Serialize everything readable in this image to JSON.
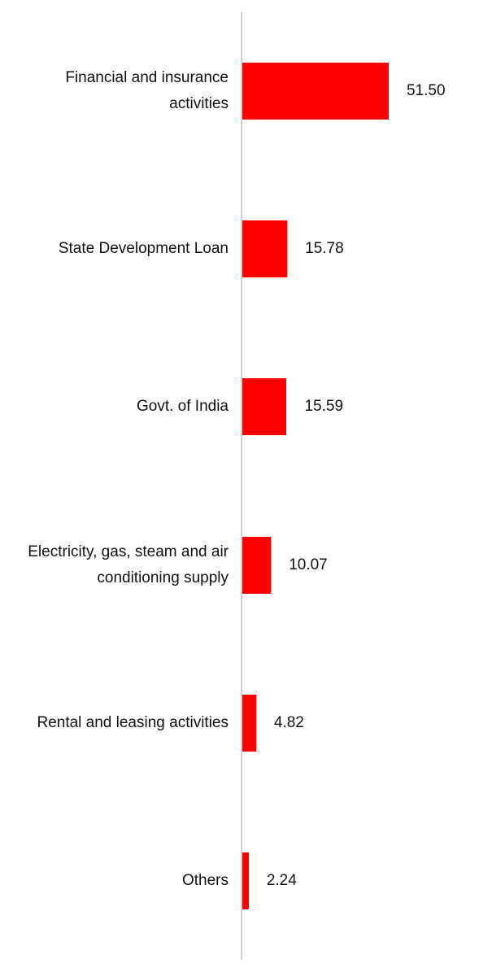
{
  "chart_data": {
    "type": "hbar",
    "categories": [
      "Financial and insurance activities",
      "State Development Loan",
      "Govt. of India",
      "Electricity, gas, steam and air conditioning supply",
      "Rental and leasing activities",
      "Others"
    ],
    "values": [
      51.5,
      15.78,
      15.59,
      10.07,
      4.82,
      2.24
    ],
    "value_labels": [
      "51.50",
      "15.78",
      "15.59",
      "10.07",
      "4.82",
      "2.24"
    ],
    "color": "#ff0000"
  }
}
